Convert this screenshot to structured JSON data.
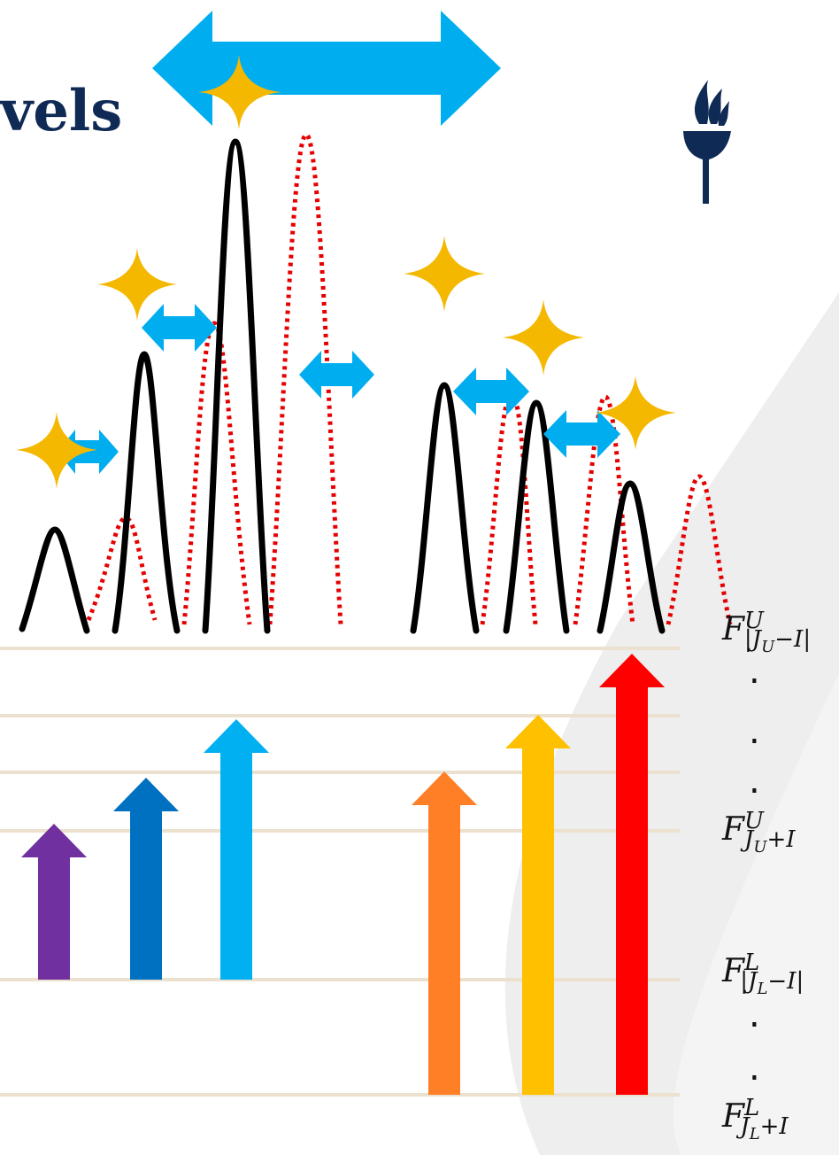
{
  "title_fragment": "vels",
  "level_labels": {
    "upper_top": {
      "base": "F",
      "sup": "U",
      "sub": "|J",
      "sub2": "U",
      "sub3": "−I|"
    },
    "upper_bottom": {
      "base": "F",
      "sup": "U",
      "sub": "J",
      "sub2": "U",
      "sub3": "+I"
    },
    "lower_top": {
      "base": "F",
      "sup": "L",
      "sub": "|J",
      "sub2": "L",
      "sub3": "−I|"
    },
    "lower_bottom": {
      "base": "F",
      "sup": "L",
      "sub": "J",
      "sub2": "L",
      "sub3": "+I"
    }
  },
  "ellipsis_dot": ".",
  "colors": {
    "title": "#0e2a55",
    "logo": "#0e2a55",
    "level_line": "#ece0cf",
    "peak_black": "#000000",
    "peak_shifted": "#e60000",
    "shift_arrow": "#00aeef",
    "sparkle": "#f5b800",
    "background_band": "#eeeeee",
    "transition_arrows": [
      "#7030a0",
      "#0070c0",
      "#00b0f0",
      "#ff7f27",
      "#ffc000",
      "#ff0000"
    ]
  },
  "icons": [
    "torch-logo-icon",
    "sparkle-icon",
    "double-arrow-icon",
    "up-arrow-icon"
  ]
}
